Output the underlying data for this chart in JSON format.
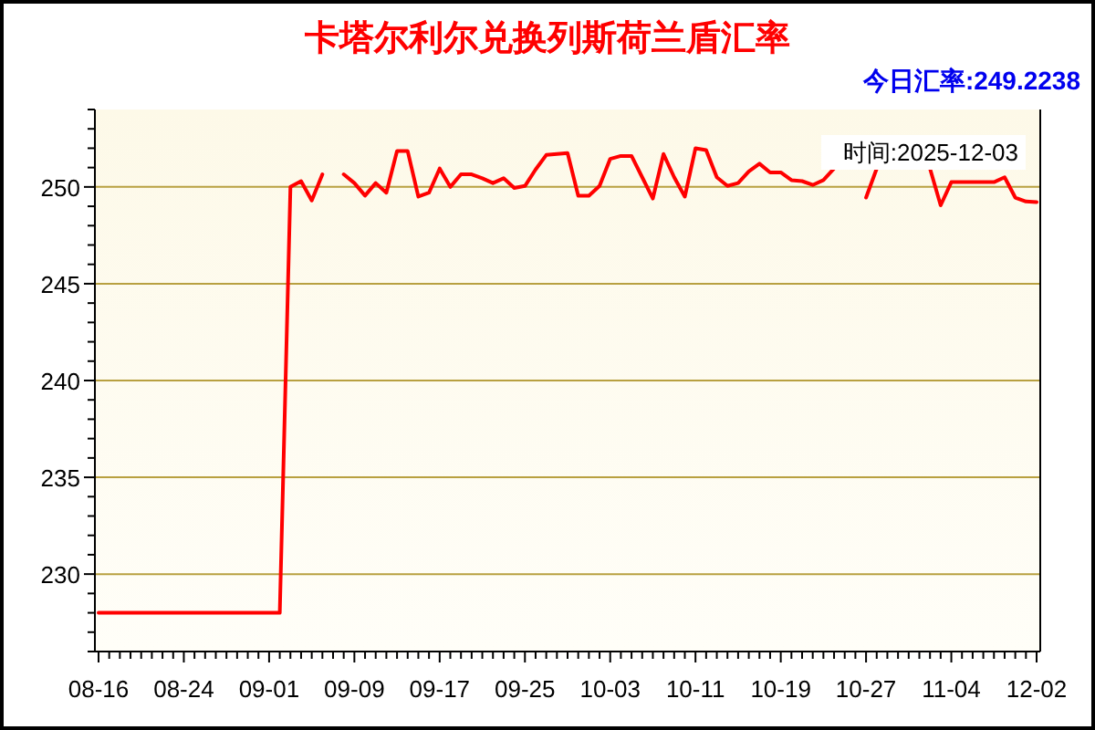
{
  "chart_data": {
    "type": "line",
    "title": "卡塔尔利尔兑换列斯荷兰盾汇率",
    "annotations": [
      "今日汇率:249.2238",
      "时间:2025-12-03"
    ],
    "categories": [
      "08-16",
      null,
      null,
      null,
      null,
      null,
      null,
      null,
      "08-24",
      null,
      null,
      null,
      null,
      null,
      null,
      null,
      "09-01",
      null,
      null,
      null,
      null,
      null,
      null,
      null,
      "09-09",
      null,
      null,
      null,
      null,
      null,
      null,
      null,
      "09-17",
      null,
      null,
      null,
      null,
      null,
      null,
      null,
      "09-25",
      null,
      null,
      null,
      null,
      null,
      null,
      null,
      "10-03",
      null,
      null,
      null,
      null,
      null,
      null,
      null,
      "10-11",
      null,
      null,
      null,
      null,
      null,
      null,
      null,
      "10-19",
      null,
      null,
      null,
      null,
      null,
      null,
      null,
      "10-27",
      null,
      null,
      null,
      null,
      null,
      null,
      null,
      "11-04",
      null,
      null,
      null,
      null,
      null,
      null,
      null,
      "12-02"
    ],
    "series": [
      {
        "color": "#ff0000",
        "values": [
          228,
          228,
          228,
          228,
          228,
          228,
          228,
          228,
          228,
          228,
          228,
          228,
          228,
          228,
          228,
          228,
          228,
          228,
          250.0,
          250.3,
          249.3,
          250.65,
          null,
          250.65,
          250.2,
          249.55,
          250.2,
          249.7,
          251.85,
          251.85,
          249.5,
          249.7,
          250.95,
          250.0,
          250.65,
          250.65,
          250.45,
          250.2,
          250.45,
          249.95,
          250.05,
          250.9,
          251.65,
          251.7,
          251.75,
          249.55,
          249.55,
          250.05,
          251.45,
          251.6,
          251.6,
          250.5,
          249.4,
          251.7,
          250.5,
          249.5,
          252.0,
          251.9,
          250.5,
          250.05,
          250.2,
          250.8,
          251.2,
          250.75,
          250.75,
          250.35,
          250.3,
          250.1,
          250.35,
          250.95,
          null,
          null,
          249.45,
          250.95,
          null,
          null,
          null,
          null,
          250.95,
          249.05,
          250.25,
          250.25,
          250.25,
          250.25,
          250.25,
          250.5,
          249.45,
          249.25,
          249.22
        ]
      }
    ],
    "ylim": [
      226,
      254
    ],
    "yticks": [
      {
        "value": 226,
        "label": null
      },
      {
        "value": 227,
        "label": null
      },
      {
        "value": 228,
        "label": null
      },
      {
        "value": 229,
        "label": null
      },
      230,
      {
        "value": 231,
        "label": null
      },
      {
        "value": 232,
        "label": null
      },
      {
        "value": 233,
        "label": null
      },
      {
        "value": 234,
        "label": null
      },
      235,
      {
        "value": 236,
        "label": null
      },
      {
        "value": 237,
        "label": null
      },
      {
        "value": 238,
        "label": null
      },
      {
        "value": 239,
        "label": null
      },
      240,
      {
        "value": 241,
        "label": null
      },
      {
        "value": 242,
        "label": null
      },
      {
        "value": 243,
        "label": null
      },
      {
        "value": 244,
        "label": null
      },
      245,
      {
        "value": 246,
        "label": null
      },
      {
        "value": 247,
        "label": null
      },
      {
        "value": 248,
        "label": null
      },
      {
        "value": 249,
        "label": null
      },
      250,
      {
        "value": 251,
        "label": null
      },
      {
        "value": 252,
        "label": null
      },
      {
        "value": 253,
        "label": null
      },
      {
        "value": 254,
        "label": null
      }
    ],
    "grid": "y",
    "marker": "none",
    "line_style": "solid"
  }
}
